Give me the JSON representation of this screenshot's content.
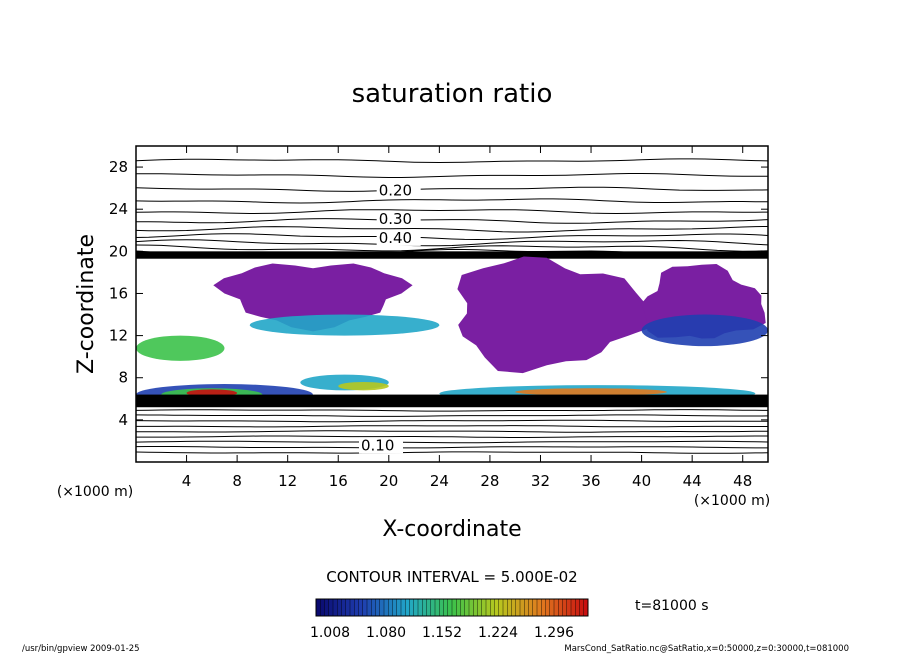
{
  "chart_data": {
    "type": "heatmap",
    "title": "saturation ratio",
    "xlabel": "X-coordinate",
    "ylabel": "Z-coordinate",
    "x_unit": "(×1000 m)",
    "y_unit": "(×1000 m)",
    "xlim": [
      0,
      50
    ],
    "ylim": [
      0,
      30
    ],
    "x_ticks": [
      "4",
      "8",
      "12",
      "16",
      "20",
      "24",
      "28",
      "32",
      "36",
      "40",
      "44",
      "48"
    ],
    "y_ticks": [
      "4",
      "8",
      "12",
      "16",
      "20",
      "24",
      "28"
    ],
    "contour_interval": "CONTOUR INTERVAL = 5.000E-02",
    "time_label": "t=81000 s",
    "colorbar_labels": [
      "1.008",
      "1.080",
      "1.152",
      "1.224",
      "1.296"
    ],
    "colorbar_colors": [
      "#0a0a70",
      "#1f3fb0",
      "#21a6c8",
      "#3cc24a",
      "#b7c81f",
      "#e07a1f",
      "#c81010"
    ],
    "fill_color_above_max": "#7a1fa2",
    "contour_labels_upper": [
      {
        "value": "0.20",
        "x": 19.2,
        "y": 25.3
      },
      {
        "value": "0.30",
        "x": 19.2,
        "y": 22.6
      },
      {
        "value": "0.40",
        "x": 19.2,
        "y": 20.8
      }
    ],
    "contour_labels_lower": [
      {
        "value": "0.10",
        "x": 17.8,
        "y": 1.1
      }
    ],
    "supersaturated_regions": [
      {
        "x": [
          7,
          21
        ],
        "z": [
          13.0,
          19.0
        ]
      },
      {
        "x": [
          25,
          40
        ],
        "z": [
          9.0,
          19.2
        ]
      },
      {
        "x": [
          40,
          49.5
        ],
        "z": [
          11.5,
          18.5
        ]
      }
    ]
  },
  "footer": {
    "left": "/usr/bin/gpview   2009-01-25",
    "right": "MarsCond_SatRatio.nc@SatRatio,x=0:50000,z=0:30000,t=081000"
  }
}
